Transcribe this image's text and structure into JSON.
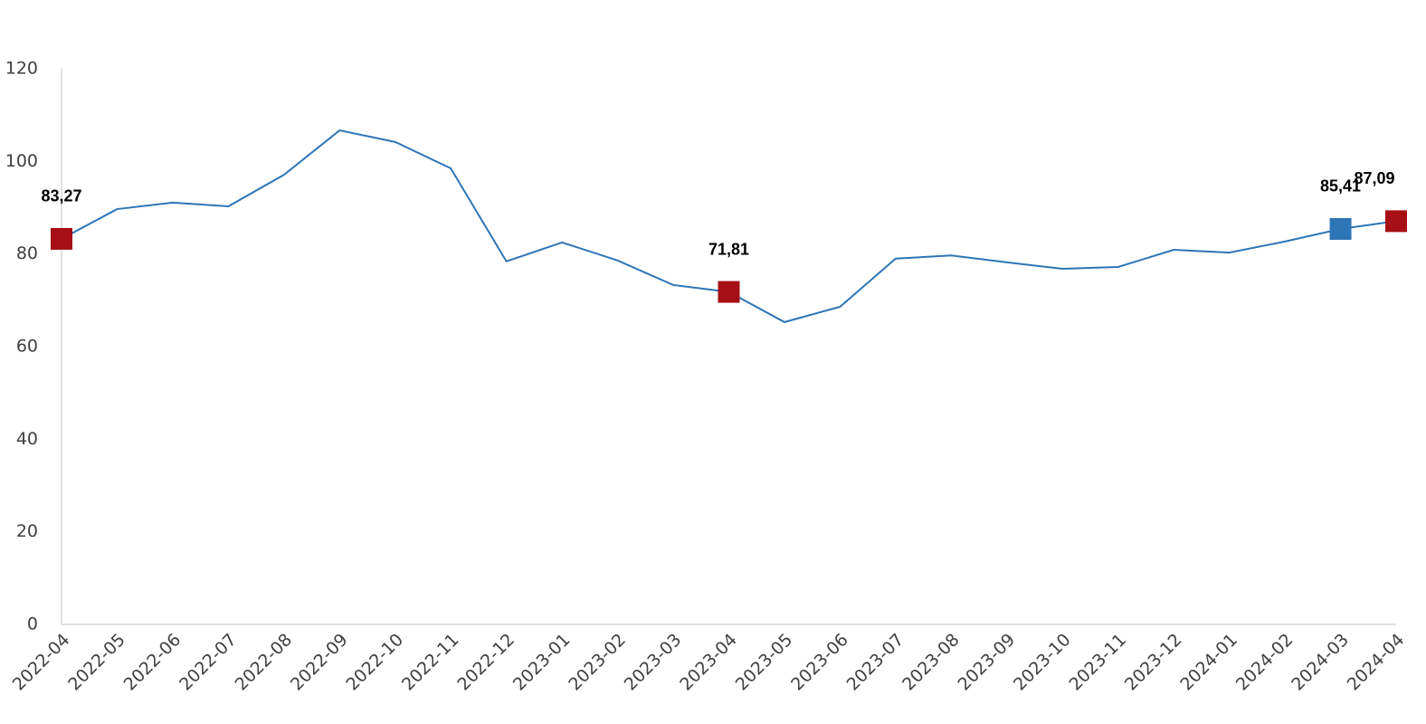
{
  "chart_data": {
    "type": "line",
    "categories": [
      "2022-04",
      "2022-05",
      "2022-06",
      "2022-07",
      "2022-08",
      "2022-09",
      "2022-10",
      "2022-11",
      "2022-12",
      "2023-01",
      "2023-02",
      "2023-03",
      "2023-04",
      "2023-05",
      "2023-06",
      "2023-07",
      "2023-08",
      "2023-09",
      "2023-10",
      "2023-11",
      "2023-12",
      "2024-01",
      "2024-02",
      "2024-03",
      "2024-04"
    ],
    "series": [
      {
        "color": "#2e75b6",
        "values": [
          83.27,
          89.7,
          91.1,
          90.3,
          97.1,
          106.7,
          104.2,
          98.5,
          78.4,
          82.5,
          78.6,
          73.3,
          71.81,
          65.3,
          68.6,
          79.0,
          79.7,
          78.2,
          76.8,
          77.2,
          80.9,
          80.3,
          82.7,
          85.41,
          87.09
        ],
        "value_labels": [
          "83,27",
          null,
          null,
          null,
          null,
          null,
          null,
          null,
          null,
          null,
          null,
          null,
          "71,81",
          null,
          null,
          null,
          null,
          null,
          null,
          null,
          null,
          null,
          null,
          "85,41",
          "87,09"
        ],
        "marker_colors": [
          "#a50f15",
          null,
          null,
          null,
          null,
          null,
          null,
          null,
          null,
          null,
          null,
          null,
          "#a50f15",
          null,
          null,
          null,
          null,
          null,
          null,
          null,
          null,
          null,
          null,
          "#2e75b6",
          "#a50f15"
        ]
      }
    ],
    "ylim": [
      0,
      120
    ],
    "yticks": [
      0,
      20,
      40,
      60,
      80,
      100,
      120
    ],
    "grid": false
  }
}
